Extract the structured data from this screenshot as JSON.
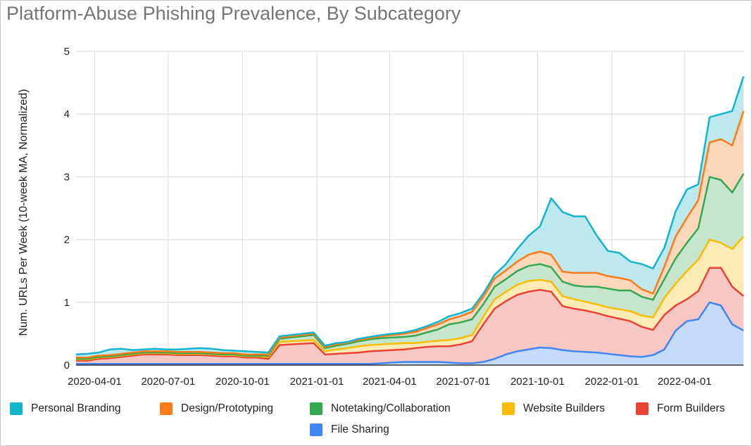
{
  "chart_data": {
    "type": "area",
    "stacked": true,
    "title": "Platform-Abuse Phishing Prevalence, By Subcategory",
    "ylabel": "Num. URLs Per Week (10-week MA, Normalized)",
    "xlabel": "",
    "ylim": [
      0,
      5
    ],
    "yticks": [
      "0",
      "1",
      "2",
      "3",
      "4",
      "5"
    ],
    "xticks": [
      "2020-04-01",
      "2020-07-01",
      "2020-10-01",
      "2021-01-01",
      "2021-04-01",
      "2021-07-01",
      "2021-10-01",
      "2022-01-01",
      "2022-04-01"
    ],
    "grid": true,
    "legend_position": "bottom",
    "x": [
      "2020-03-09",
      "2020-03-23",
      "2020-04-06",
      "2020-04-20",
      "2020-05-04",
      "2020-05-18",
      "2020-06-01",
      "2020-06-15",
      "2020-06-29",
      "2020-07-13",
      "2020-07-27",
      "2020-08-10",
      "2020-08-24",
      "2020-09-07",
      "2020-09-21",
      "2020-10-05",
      "2020-10-19",
      "2020-11-02",
      "2020-11-16",
      "2020-11-30",
      "2020-12-14",
      "2020-12-28",
      "2021-01-11",
      "2021-01-25",
      "2021-02-08",
      "2021-02-22",
      "2021-03-08",
      "2021-03-22",
      "2021-04-05",
      "2021-04-19",
      "2021-05-03",
      "2021-05-17",
      "2021-05-31",
      "2021-06-14",
      "2021-06-28",
      "2021-07-12",
      "2021-07-26",
      "2021-08-09",
      "2021-08-23",
      "2021-09-06",
      "2021-09-20",
      "2021-10-04",
      "2021-10-18",
      "2021-11-01",
      "2021-11-15",
      "2021-11-29",
      "2021-12-13",
      "2021-12-27",
      "2022-01-10",
      "2022-01-24",
      "2022-02-07",
      "2022-02-21",
      "2022-03-07",
      "2022-03-21",
      "2022-04-04",
      "2022-04-18",
      "2022-05-02",
      "2022-05-16",
      "2022-05-30",
      "2022-06-13"
    ],
    "series": [
      {
        "name": "File Sharing",
        "color": "#4285f4",
        "fill": "#c6daf9",
        "values": [
          0.02,
          0.02,
          0.02,
          0.02,
          0.02,
          0.02,
          0.02,
          0.02,
          0.02,
          0.02,
          0.02,
          0.02,
          0.02,
          0.02,
          0.02,
          0.02,
          0.02,
          0.02,
          0.02,
          0.02,
          0.02,
          0.02,
          0.02,
          0.02,
          0.02,
          0.02,
          0.02,
          0.03,
          0.04,
          0.05,
          0.05,
          0.05,
          0.05,
          0.04,
          0.03,
          0.03,
          0.05,
          0.1,
          0.17,
          0.22,
          0.25,
          0.28,
          0.27,
          0.24,
          0.22,
          0.21,
          0.2,
          0.18,
          0.16,
          0.14,
          0.13,
          0.16,
          0.25,
          0.55,
          0.7,
          0.73,
          1.0,
          0.95,
          0.65,
          0.55
        ]
      },
      {
        "name": "Form Builders",
        "color": "#ea4335",
        "fill": "#f6c7c3",
        "values": [
          0.05,
          0.05,
          0.08,
          0.09,
          0.11,
          0.13,
          0.15,
          0.15,
          0.15,
          0.14,
          0.14,
          0.14,
          0.13,
          0.12,
          0.12,
          0.1,
          0.1,
          0.08,
          0.3,
          0.31,
          0.32,
          0.33,
          0.15,
          0.16,
          0.17,
          0.18,
          0.2,
          0.2,
          0.2,
          0.2,
          0.22,
          0.24,
          0.25,
          0.26,
          0.3,
          0.35,
          0.6,
          0.8,
          0.85,
          0.9,
          0.92,
          0.92,
          0.9,
          0.7,
          0.68,
          0.66,
          0.63,
          0.6,
          0.58,
          0.56,
          0.48,
          0.4,
          0.55,
          0.4,
          0.35,
          0.45,
          0.55,
          0.6,
          0.6,
          0.55
        ]
      },
      {
        "name": "Website Builders",
        "color": "#fbbc04",
        "fill": "#fdebb6",
        "values": [
          0.02,
          0.02,
          0.02,
          0.02,
          0.02,
          0.02,
          0.02,
          0.02,
          0.02,
          0.02,
          0.02,
          0.02,
          0.02,
          0.02,
          0.02,
          0.02,
          0.02,
          0.03,
          0.05,
          0.05,
          0.05,
          0.05,
          0.05,
          0.07,
          0.08,
          0.1,
          0.1,
          0.1,
          0.1,
          0.1,
          0.08,
          0.08,
          0.09,
          0.1,
          0.1,
          0.1,
          0.12,
          0.15,
          0.15,
          0.16,
          0.17,
          0.16,
          0.16,
          0.16,
          0.15,
          0.14,
          0.14,
          0.14,
          0.15,
          0.16,
          0.18,
          0.2,
          0.27,
          0.35,
          0.45,
          0.5,
          0.45,
          0.4,
          0.6,
          0.95
        ]
      },
      {
        "name": "Notetaking/Collaboration",
        "color": "#34a853",
        "fill": "#c5e5cc",
        "values": [
          0.01,
          0.01,
          0.01,
          0.01,
          0.01,
          0.01,
          0.01,
          0.01,
          0.01,
          0.01,
          0.01,
          0.01,
          0.01,
          0.01,
          0.01,
          0.01,
          0.01,
          0.02,
          0.05,
          0.06,
          0.07,
          0.08,
          0.05,
          0.06,
          0.07,
          0.08,
          0.09,
          0.1,
          0.1,
          0.1,
          0.12,
          0.15,
          0.18,
          0.25,
          0.25,
          0.25,
          0.2,
          0.2,
          0.2,
          0.22,
          0.24,
          0.25,
          0.23,
          0.23,
          0.22,
          0.24,
          0.28,
          0.3,
          0.3,
          0.33,
          0.3,
          0.28,
          0.3,
          0.4,
          0.45,
          0.5,
          1.0,
          1.0,
          0.9,
          1.0
        ]
      },
      {
        "name": "Design/Prototyping",
        "color": "#fa7b17",
        "fill": "#fdd7b9",
        "values": [
          0.02,
          0.02,
          0.02,
          0.02,
          0.02,
          0.02,
          0.02,
          0.02,
          0.02,
          0.02,
          0.02,
          0.02,
          0.02,
          0.02,
          0.02,
          0.02,
          0.02,
          0.02,
          0.02,
          0.02,
          0.02,
          0.02,
          0.02,
          0.02,
          0.02,
          0.02,
          0.02,
          0.03,
          0.04,
          0.05,
          0.06,
          0.07,
          0.08,
          0.08,
          0.1,
          0.12,
          0.12,
          0.13,
          0.14,
          0.15,
          0.18,
          0.2,
          0.2,
          0.16,
          0.2,
          0.22,
          0.22,
          0.2,
          0.2,
          0.16,
          0.12,
          0.1,
          0.2,
          0.35,
          0.4,
          0.45,
          0.55,
          0.65,
          0.75,
          1.0
        ]
      },
      {
        "name": "Personal Branding",
        "color": "#12b5cb",
        "fill": "#bde8ed",
        "values": [
          0.05,
          0.06,
          0.05,
          0.09,
          0.08,
          0.04,
          0.03,
          0.04,
          0.03,
          0.04,
          0.05,
          0.06,
          0.06,
          0.05,
          0.04,
          0.05,
          0.04,
          0.03,
          0.02,
          0.02,
          0.02,
          0.02,
          0.02,
          0.02,
          0.01,
          0.02,
          0.02,
          0.02,
          0.02,
          0.02,
          0.03,
          0.03,
          0.04,
          0.05,
          0.05,
          0.05,
          0.05,
          0.06,
          0.1,
          0.2,
          0.3,
          0.4,
          0.9,
          0.95,
          0.9,
          0.9,
          0.6,
          0.4,
          0.4,
          0.3,
          0.4,
          0.4,
          0.3,
          0.4,
          0.45,
          0.25,
          0.4,
          0.4,
          0.55,
          0.55
        ]
      }
    ]
  },
  "legend": {
    "row1": [
      "Personal Branding",
      "Design/Prototyping",
      "Notetaking/Collaboration",
      "Website Builders",
      "Form Builders"
    ],
    "row2": [
      "File Sharing"
    ]
  }
}
